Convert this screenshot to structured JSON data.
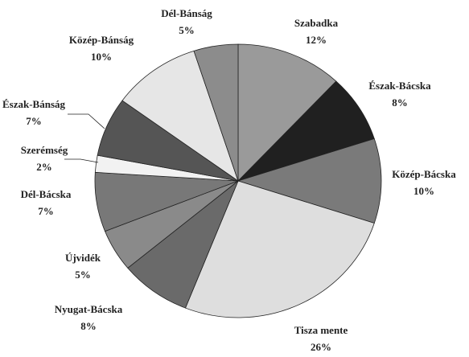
{
  "chart_data": {
    "type": "pie",
    "categories": [
      "Szabadka",
      "Észak-Bácska",
      "Közép-Bácska",
      "Tisza mente",
      "Nyugat-Bácska",
      "Újvidék",
      "Dél-Bácska",
      "Szerémség",
      "Észak-Bánság",
      "Közép-Bánság",
      "Dél-Bánság"
    ],
    "values": [
      12,
      8,
      10,
      26,
      8,
      5,
      7,
      2,
      7,
      10,
      5
    ],
    "value_labels": [
      "12%",
      "8%",
      "10%",
      "26%",
      "8%",
      "5%",
      "7%",
      "2%",
      "7%",
      "10%",
      "5%"
    ],
    "colors": [
      "#9a9a9a",
      "#202020",
      "#7a7a7a",
      "#dedede",
      "#6a6a6a",
      "#8a8a8a",
      "#787878",
      "#f2f2f2",
      "#555555",
      "#e6e6e6",
      "#8c8c8c"
    ]
  }
}
